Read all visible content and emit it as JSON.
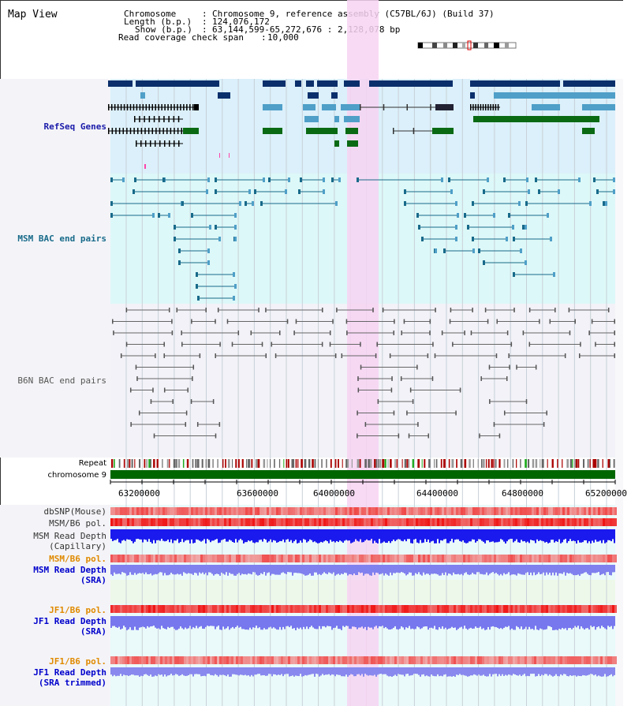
{
  "view": {
    "title": "Map View",
    "chromosome_label": "Chromosome",
    "chromosome_value": "Chromosome 9, reference assembly (C57BL/6J) (Build 37)",
    "length_label": "Length (b.p.)",
    "length_value": "124,076,172",
    "show_label": "Show (b.p.)",
    "show_value": "63,144,599-65,272,676 : 2,128,078 bp",
    "coverage_label": "Read coverage check span",
    "coverage_value": "10,000"
  },
  "tracks": {
    "refseq": "RefSeq Genes",
    "msm_bac": "MSM BAC end pairs",
    "b6n_bac": "B6N BAC end pairs",
    "repeat": "Repeat",
    "chromosome": "chromosome 9",
    "dbsnp": "dbSNP(Mouse)",
    "msm_b6_pol_1": "MSM/B6 pol.",
    "msm_depth_cap_1": "MSM Read Depth",
    "msm_depth_cap_2": "(Capillary)",
    "msm_b6_pol_2": "MSM/B6 pol.",
    "msm_depth_sra_1": "MSM Read Depth",
    "msm_depth_sra_2": "(SRA)",
    "jf1_b6_pol_1": "JF1/B6 pol.",
    "jf1_depth_sra_1": "JF1 Read Depth",
    "jf1_depth_sra_2": "(SRA)",
    "jf1_b6_pol_2": "JF1/B6 pol.",
    "jf1_depth_trim_1": "JF1 Read Depth",
    "jf1_depth_trim_2": "(SRA trimmed)"
  },
  "axis": {
    "ticks": [
      "63200000",
      "63600000",
      "64000000",
      "64400000",
      "64800000",
      "65200000"
    ]
  },
  "colors": {
    "refseq_label": "#1a1aaa",
    "msm_label": "#186a8a",
    "b6n_label": "#555555",
    "orange_label": "#e08a00",
    "blue_label": "#0000cc",
    "highlight": "#f7d4f2",
    "refseq_bg": "#dbf0fa",
    "msm_bg": "#ddf8f8",
    "b6n_bg": "#f2f2f8",
    "chromosome_bar": "#006600"
  }
}
